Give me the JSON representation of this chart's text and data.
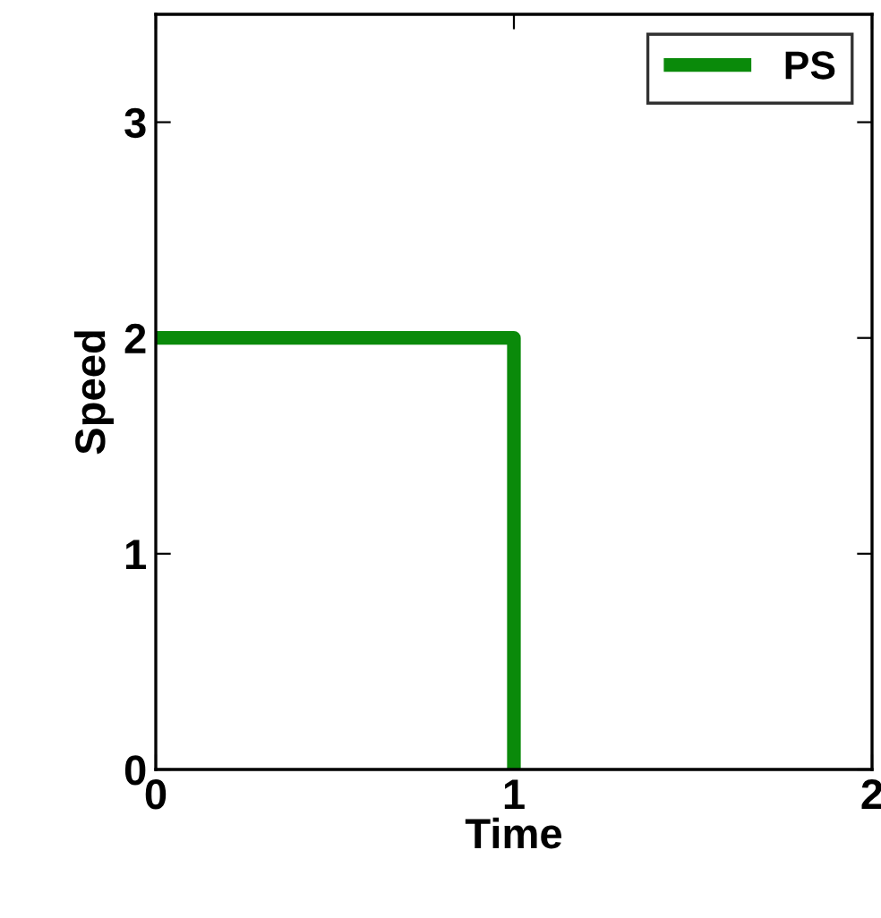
{
  "chart_data": {
    "type": "step",
    "xlabel": "Time",
    "ylabel": "Speed",
    "x": [
      0,
      1
    ],
    "series": [
      {
        "name": "PS",
        "color": "#0a8a0a",
        "values": [
          2,
          0
        ]
      }
    ],
    "xlim": [
      0,
      2
    ],
    "xticks": [
      0,
      1,
      2
    ],
    "ylim": [
      0,
      3.5
    ],
    "yticks": [
      0,
      1,
      2,
      3
    ],
    "legend": "top right",
    "grid": false,
    "marker": "none",
    "line_style": "solid"
  }
}
